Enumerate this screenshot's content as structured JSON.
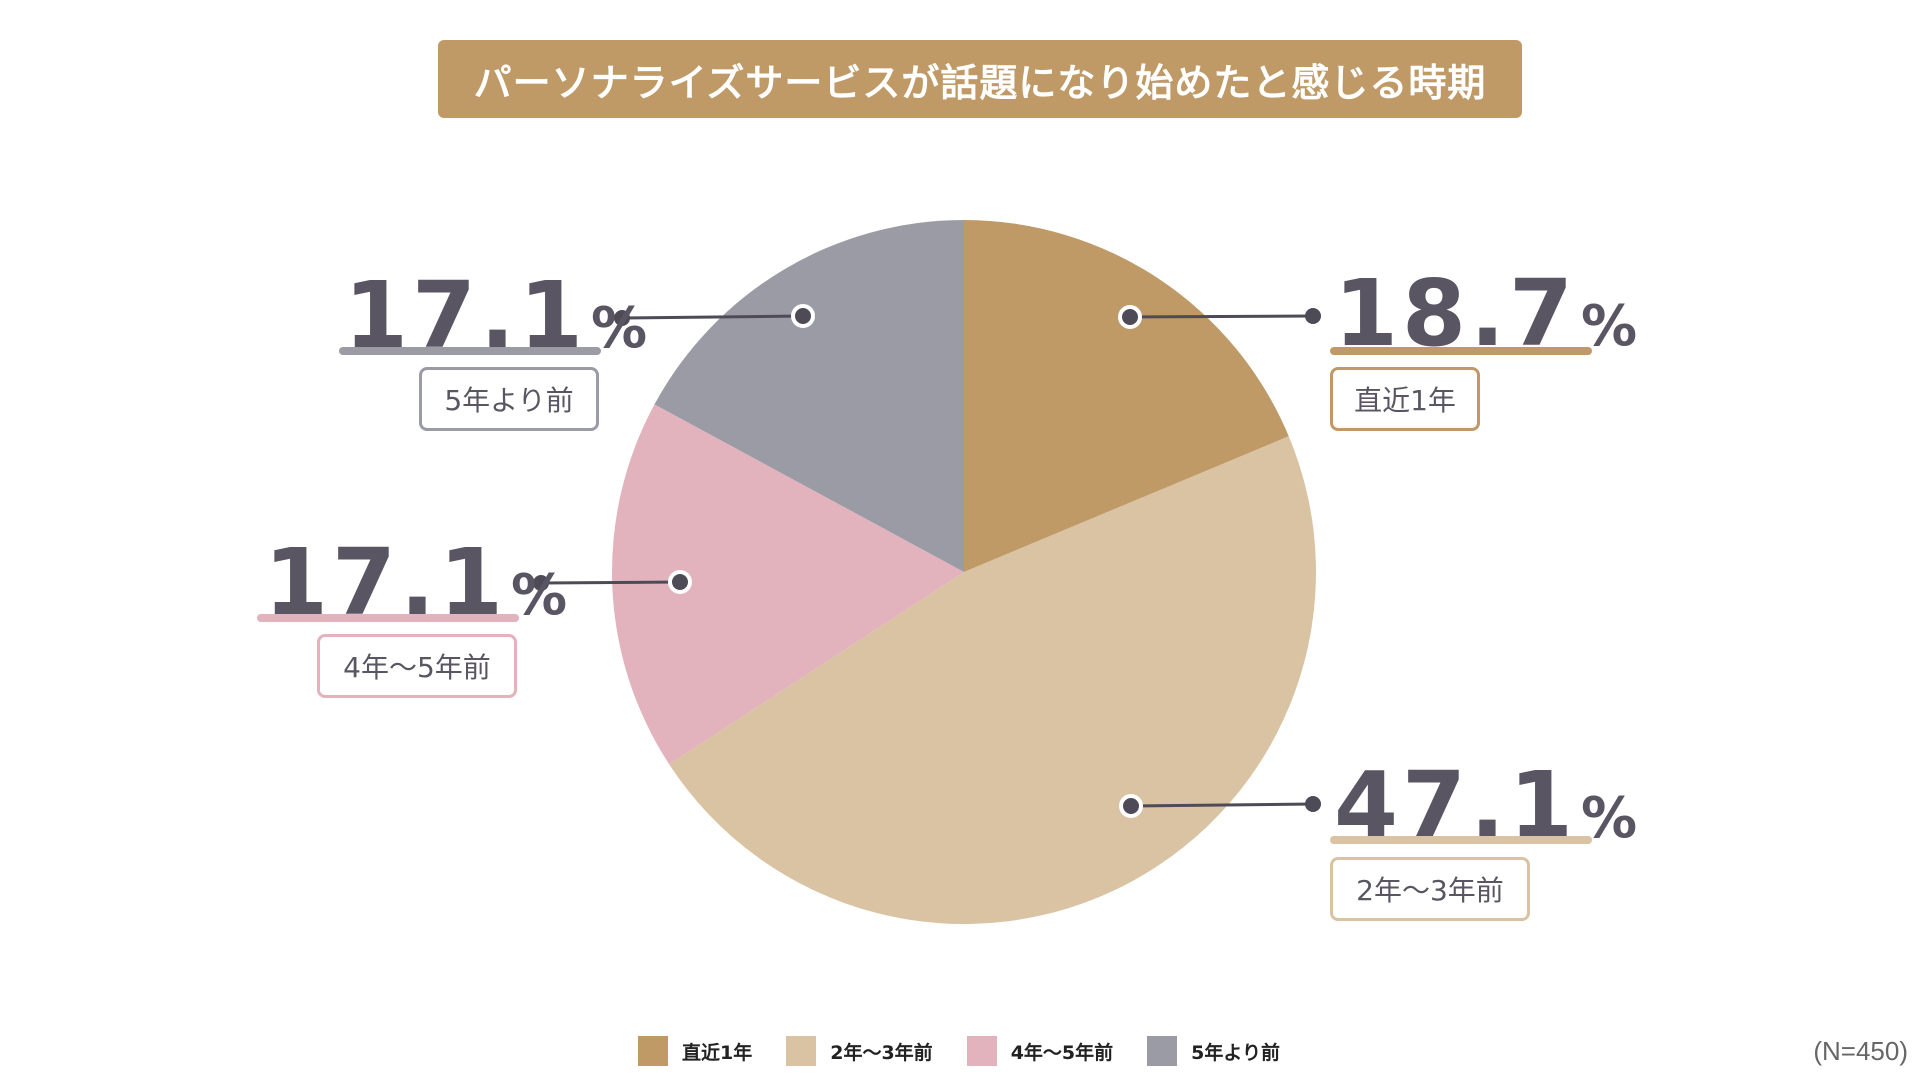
{
  "title": "パーソナライズサービスが話題になり始めたと感じる時期",
  "sample_size": "(N=450)",
  "percent_unit": "%",
  "colors": {
    "title_bg": "#BF9A67",
    "text_dark": "#595563",
    "connector": "#4E4B57"
  },
  "chart_data": {
    "type": "pie",
    "title": "パーソナライズサービスが話題になり始めたと感じる時期",
    "start_angle_deg": 0,
    "direction": "clockwise",
    "slices": [
      {
        "label": "直近1年",
        "value": 18.7,
        "value_text": "18.7",
        "color": "#BF9A67"
      },
      {
        "label": "2年〜3年前",
        "value": 47.1,
        "value_text": "47.1",
        "color": "#D9C3A2"
      },
      {
        "label": "4年〜5年前",
        "value": 17.1,
        "value_text": "17.1",
        "color": "#E2B3BD"
      },
      {
        "label": "5年より前",
        "value": 17.1,
        "value_text": "17.1",
        "color": "#9B9BA5"
      }
    ],
    "legend": [
      "直近1年",
      "2年〜3年前",
      "4年〜5年前",
      "5年より前"
    ],
    "legend_position": "bottom-center",
    "n": 450
  }
}
